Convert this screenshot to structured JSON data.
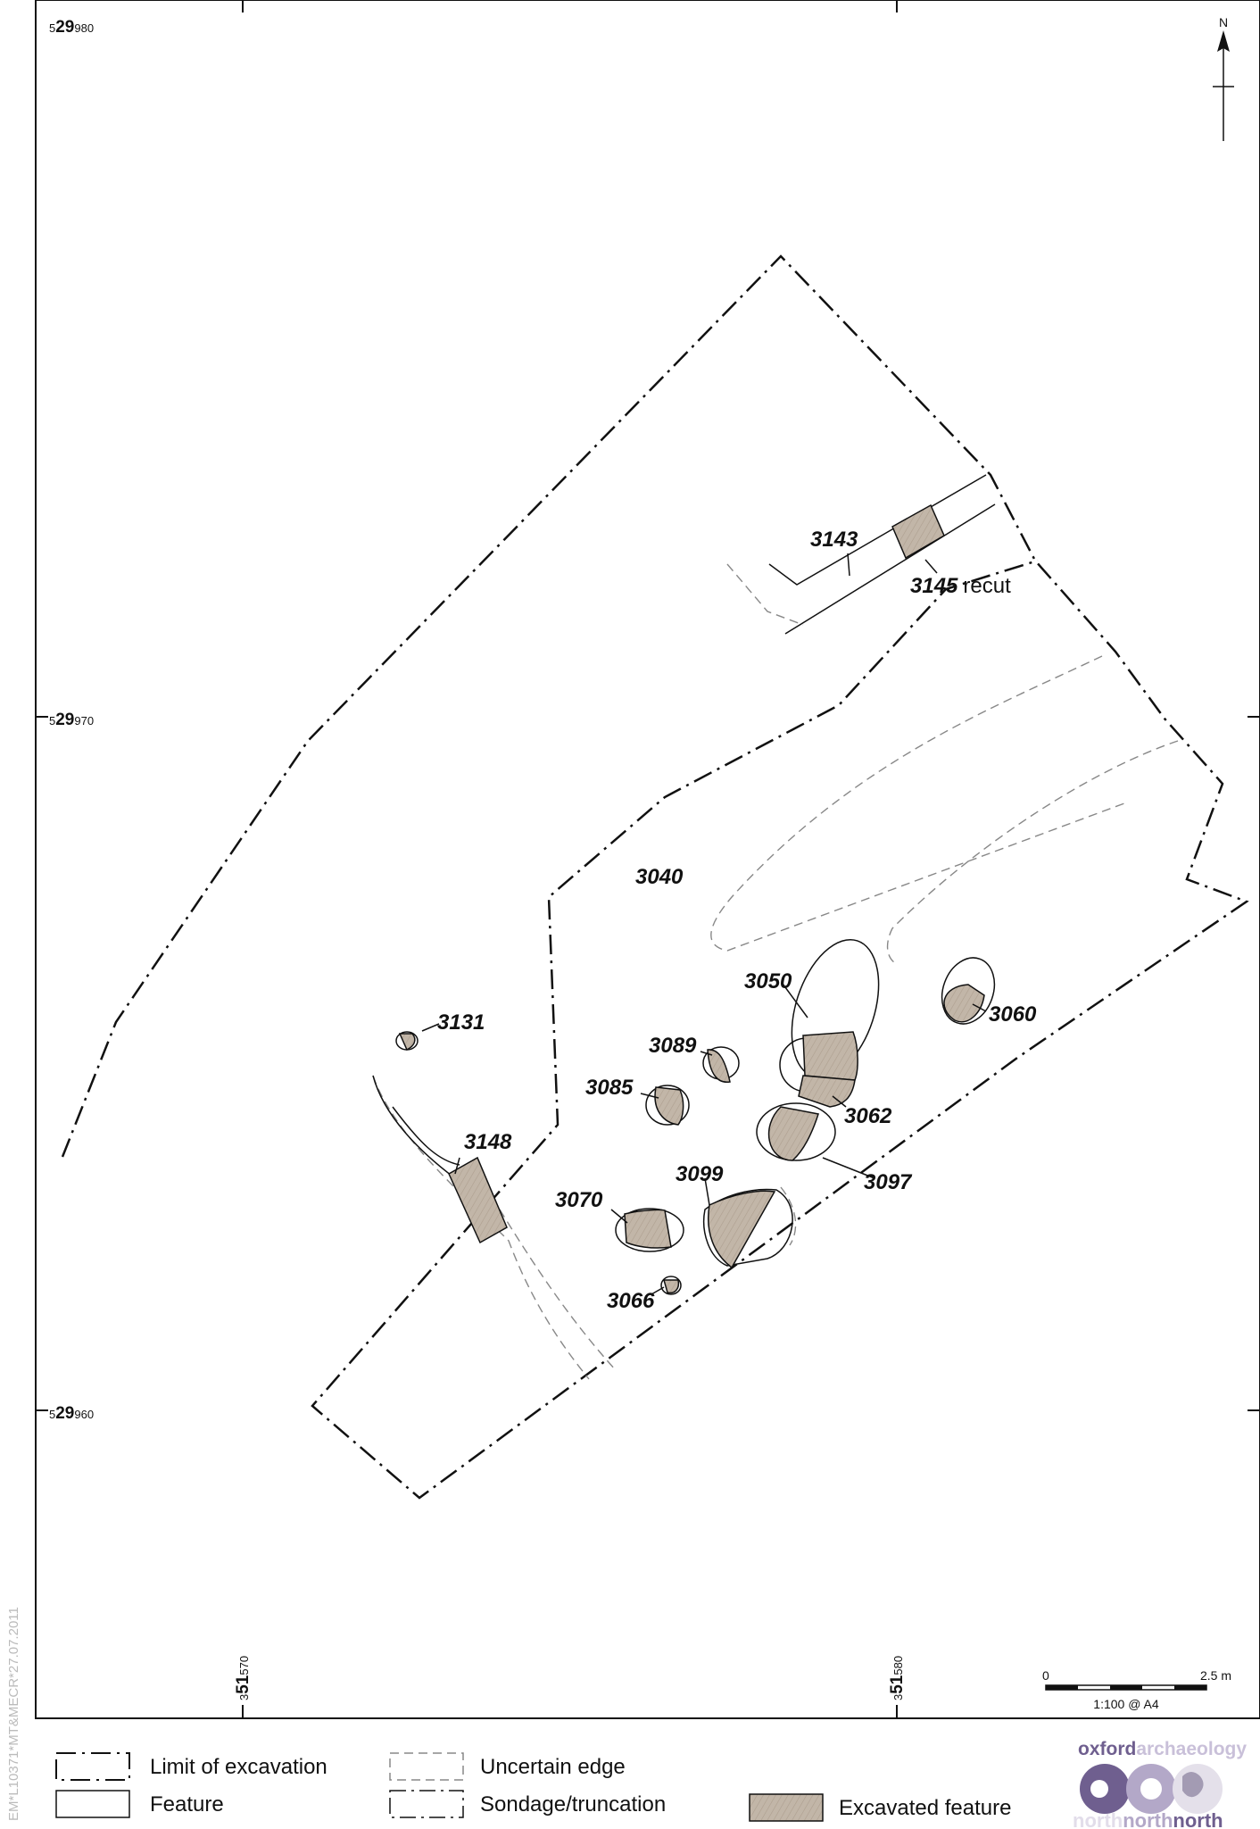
{
  "grid": {
    "northings": [
      {
        "prefix": "5",
        "big": "29",
        "small": "980"
      },
      {
        "prefix": "5",
        "big": "29",
        "small": "970"
      },
      {
        "prefix": "5",
        "big": "29",
        "small": "960"
      }
    ],
    "eastings": [
      {
        "prefix": "3",
        "big": "51",
        "small": "570"
      },
      {
        "prefix": "3",
        "big": "51",
        "small": "580"
      }
    ]
  },
  "north_arrow": {
    "label": "N"
  },
  "features": {
    "f3143": "3143",
    "f3145": "3145",
    "recut": "recut",
    "f3040": "3040",
    "f3050": "3050",
    "f3060": "3060",
    "f3131": "3131",
    "f3089": "3089",
    "f3085": "3085",
    "f3062": "3062",
    "f3148": "3148",
    "f3099": "3099",
    "f3097": "3097",
    "f3070": "3070",
    "f3066": "3066"
  },
  "scale": {
    "start": "0",
    "end": "2.5 m",
    "ratio": "1:100 @ A4"
  },
  "legend": {
    "limit": "Limit of excavation",
    "feature": "Feature",
    "uncertain": "Uncertain edge",
    "sondage": "Sondage/truncation",
    "excavated": "Excavated feature"
  },
  "logo": {
    "word1": "oxford",
    "word2": "archaeology",
    "sub1": "north",
    "sub2": "north",
    "sub3": "north"
  },
  "side_note": "EM*L10371*MT&MECR*27.07.2011",
  "colors": {
    "excavated_fill": "#bfb2a3",
    "logo_purple": "#6f5f8f",
    "logo_light": "#c9c0d9"
  }
}
